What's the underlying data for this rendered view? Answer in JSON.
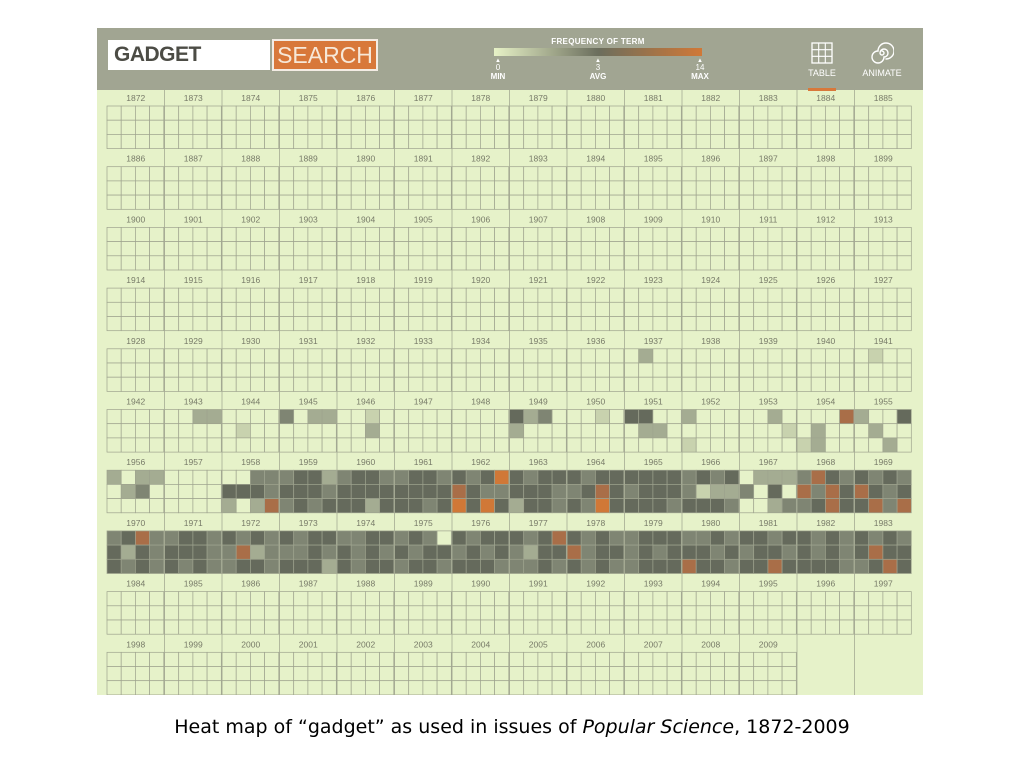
{
  "search": {
    "value": "GADGET",
    "button_label": "SEARCH"
  },
  "legend": {
    "title": "FREQUENCY OF TERM",
    "min_value": "0",
    "avg_value": "3",
    "max_value": "14",
    "min_label": "MIN",
    "avg_label": "AVG",
    "max_label": "MAX",
    "gradient_colors": [
      "#e7f2c7",
      "#6b6e5d",
      "#d07837"
    ]
  },
  "tools": {
    "table": {
      "label": "TABLE",
      "icon": "grid-icon",
      "active": true
    },
    "animate": {
      "label": "ANIMATE",
      "icon": "spiral-icon",
      "active": false
    }
  },
  "caption": {
    "before": "Heat map of “gadget” as used in issues of ",
    "italic": "Popular Science",
    "after": ", 1872-2009"
  },
  "chart_data": {
    "type": "heatmap",
    "title": "",
    "description": "One small 4 x 3 block of 12 monthly cells per year, shaded by how often the term appears in that issue",
    "years": [
      1872,
      2009
    ],
    "months_per_year": 12,
    "year_labels": [
      "1872",
      "1873",
      "1874",
      "1875",
      "1876",
      "1877",
      "1878",
      "1879",
      "1880",
      "1881",
      "1882",
      "1883",
      "1884",
      "1885",
      "1886",
      "1887",
      "1888",
      "1889",
      "1890",
      "1891",
      "1892",
      "1893",
      "1894",
      "1895",
      "1896",
      "1897",
      "1898",
      "1899",
      "1900",
      "1901",
      "1902",
      "1903",
      "1904",
      "1905",
      "1906",
      "1907",
      "1908",
      "1909",
      "1910",
      "1911",
      "1912",
      "1913",
      "1914",
      "1915",
      "1916",
      "1917",
      "1918",
      "1919",
      "1920",
      "1921",
      "1922",
      "1923",
      "1924",
      "1925",
      "1926",
      "1927",
      "1928",
      "1929",
      "1930",
      "1931",
      "1932",
      "1933",
      "1934",
      "1935",
      "1936",
      "1937",
      "1938",
      "1939",
      "1940",
      "1941",
      "1942",
      "1943",
      "1944",
      "1945",
      "1946",
      "1947",
      "1948",
      "1949",
      "1950",
      "1951",
      "1952",
      "1953",
      "1954",
      "1955",
      "1956",
      "1957",
      "1958",
      "1959",
      "1960",
      "1961",
      "1962",
      "1963",
      "1964",
      "1965",
      "1966",
      "1967",
      "1968",
      "1969",
      "1970",
      "1971",
      "1972",
      "1973",
      "1974",
      "1975",
      "1976",
      "1977",
      "1978",
      "1979",
      "1980",
      "1981",
      "1982",
      "1983",
      "1984",
      "1985",
      "1986",
      "1987",
      "1988",
      "1989",
      "1990",
      "1991",
      "1992",
      "1993",
      "1994",
      "1995",
      "1996",
      "1997",
      "1998",
      "1999",
      "2000",
      "2001",
      "2002",
      "2003",
      "2004",
      "2005",
      "2006",
      "2007",
      "2008",
      "2009"
    ],
    "value_range": [
      0,
      14
    ],
    "values": [
      "000000000000",
      "000000000000",
      "000000000000",
      "000000000000",
      "000000000000",
      "000000000000",
      "000000000000",
      "000000000000",
      "000000000000",
      "000000000000",
      "000000000000",
      "000000000000",
      "000000000000",
      "000000000000",
      "000000000000",
      "000000000000",
      "000000000000",
      "000000000000",
      "000000000000",
      "000000000000",
      "000000000000",
      "000000000000",
      "000000000000",
      "000000000000",
      "000000000000",
      "000000000000",
      "000000000000",
      "000000000000",
      "000000000000",
      "000000000000",
      "000000000000",
      "000000000000",
      "000000000000",
      "000000000000",
      "000000000000",
      "000000000000",
      "000000000000",
      "000000000000",
      "000000000000",
      "000000000000",
      "000000000000",
      "000000000000",
      "000000000000",
      "000000000000",
      "000000000000",
      "000000000000",
      "000000000000",
      "000000000000",
      "000000000000",
      "000000000000",
      "000000000000",
      "000000000000",
      "000000000000",
      "000000000000",
      "000000000000",
      "000000000000",
      "000000000000",
      "000000000000",
      "000000000000",
      "000000000000",
      "000000000000",
      "000000000000",
      "000000000000",
      "000000000000",
      "000000000000",
      "020000000000",
      "000000000000",
      "000000000000",
      "000000000000",
      "010000000000",
      "000000000000",
      "002200000000",
      "000001000000",
      "302200000000",
      "001000200000",
      "000000000000",
      "000000000000",
      "423020000000",
      "001000000000",
      "440002200000",
      "200000001000",
      "002000010000",
      "000502001200",
      "200402000020",
      "202202300000",
      "000000000000",
      "003344432025",
      "344244433434",
      "344344444424",
      "344344444434",
      "434654336464",
      "434444432443",
      "434434544364",
      "444434444443",
      "343431224443",
      "022230400023",
      "354353543454",
      "434354344535",
      "345342434343",
      "344344434343",
      "434335233443",
      "434433434442",
      "334443434344",
      "343043443443",
      "434434344443",
      "434532443343",
      "434353444343",
      "344434343444",
      "334344345443",
      "443434434454",
      "434343434443",
      "434345443454",
      "000000000000",
      "000000000000",
      "000000000000",
      "000000000000",
      "000000000000",
      "000000000000",
      "000000000000",
      "000000000000",
      "000000000000",
      "000000000000",
      "000000000000",
      "000000000000",
      "000000000000",
      "000000000000",
      "000000000000",
      "000000000000",
      "000000000000",
      "000000000000",
      "000000000000",
      "000000000000",
      "000000000000",
      "000000000000",
      "000000000000",
      "000000000000",
      "000000000000",
      "000000000000",
      "000000000000",
      "000000000000",
      "000000000000",
      "000000000000",
      "000000000000",
      "000000000000",
      "000000000000",
      "000000000000",
      "000000000000",
      "000000000000",
      "000000000000",
      "000000000000"
    ]
  }
}
